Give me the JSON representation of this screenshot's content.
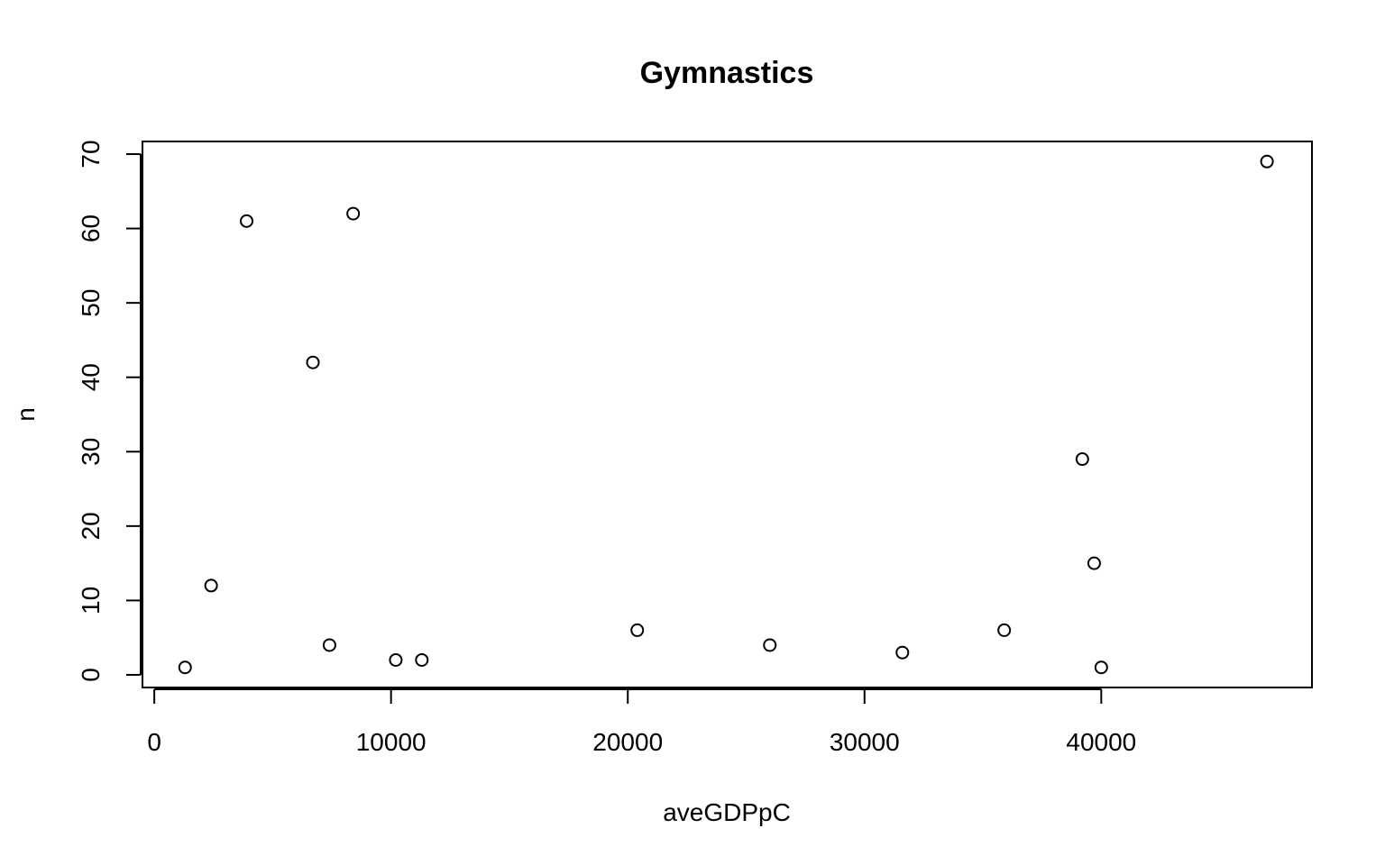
{
  "chart_data": {
    "type": "scatter",
    "title": "Gymnastics",
    "xlabel": "aveGDPpC",
    "ylabel": "n",
    "xlim": [
      -500,
      48900
    ],
    "ylim": [
      -1.7,
      71.7
    ],
    "x_ticks": [
      0,
      10000,
      20000,
      30000,
      40000
    ],
    "y_ticks": [
      0,
      10,
      20,
      30,
      40,
      50,
      60,
      70
    ],
    "grid": false,
    "point_style": "open-circle",
    "points": [
      {
        "x": 1300,
        "y": 1
      },
      {
        "x": 2400,
        "y": 12
      },
      {
        "x": 3900,
        "y": 61
      },
      {
        "x": 6700,
        "y": 42
      },
      {
        "x": 7400,
        "y": 4
      },
      {
        "x": 8400,
        "y": 62
      },
      {
        "x": 10200,
        "y": 2
      },
      {
        "x": 11300,
        "y": 2
      },
      {
        "x": 20400,
        "y": 6
      },
      {
        "x": 26000,
        "y": 4
      },
      {
        "x": 31600,
        "y": 3
      },
      {
        "x": 35900,
        "y": 6
      },
      {
        "x": 39200,
        "y": 29
      },
      {
        "x": 39700,
        "y": 15
      },
      {
        "x": 40000,
        "y": 1
      },
      {
        "x": 47000,
        "y": 69
      }
    ]
  }
}
